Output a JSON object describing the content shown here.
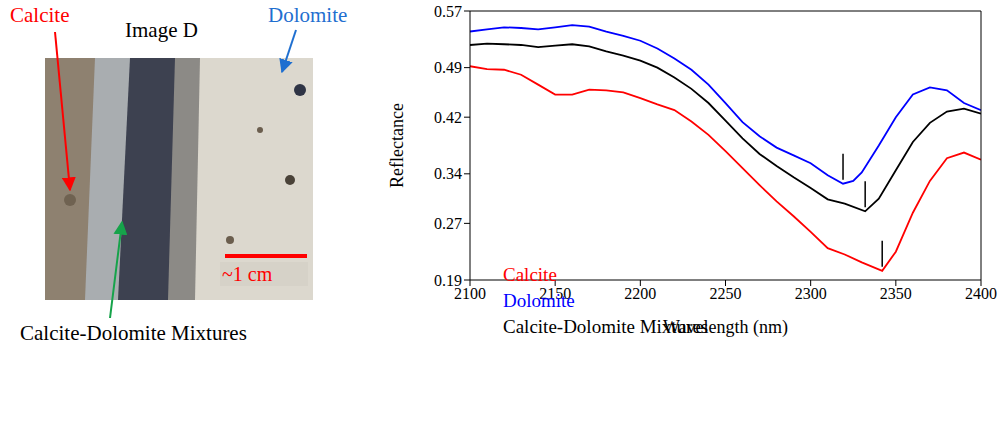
{
  "chart_data": {
    "type": "line",
    "x_label": "Wavelength (nm)",
    "y_label": "Reflectance",
    "xlim": [
      2100,
      2400
    ],
    "xticks": [
      2100,
      2150,
      2200,
      2250,
      2300,
      2350,
      2400
    ],
    "ylim": [
      0.19,
      0.57
    ],
    "yticks": [
      0.19,
      0.27,
      0.34,
      0.42,
      0.49,
      0.57
    ],
    "grid": false,
    "legend": "lower left",
    "series": [
      {
        "name": "Calcite",
        "color": "#ff0000",
        "band_center": 2342,
        "x": [
          2100,
          2110,
          2120,
          2130,
          2140,
          2150,
          2160,
          2170,
          2180,
          2190,
          2200,
          2210,
          2220,
          2230,
          2240,
          2250,
          2260,
          2270,
          2280,
          2290,
          2300,
          2310,
          2320,
          2330,
          2342,
          2350,
          2360,
          2370,
          2380,
          2390,
          2400
        ],
        "values": [
          0.492,
          0.488,
          0.487,
          0.48,
          0.466,
          0.452,
          0.452,
          0.459,
          0.458,
          0.455,
          0.447,
          0.438,
          0.43,
          0.414,
          0.395,
          0.372,
          0.348,
          0.324,
          0.301,
          0.28,
          0.258,
          0.235,
          0.226,
          0.215,
          0.203,
          0.23,
          0.285,
          0.33,
          0.362,
          0.37,
          0.36
        ]
      },
      {
        "name": "Dolomite",
        "color": "#0000ff",
        "band_center": 2319,
        "x": [
          2100,
          2110,
          2120,
          2130,
          2140,
          2150,
          2160,
          2170,
          2180,
          2190,
          2200,
          2210,
          2220,
          2230,
          2240,
          2250,
          2260,
          2270,
          2280,
          2290,
          2300,
          2310,
          2319,
          2325,
          2330,
          2340,
          2350,
          2360,
          2370,
          2380,
          2390,
          2400
        ],
        "values": [
          0.541,
          0.544,
          0.547,
          0.546,
          0.544,
          0.547,
          0.55,
          0.548,
          0.541,
          0.535,
          0.528,
          0.517,
          0.503,
          0.487,
          0.466,
          0.44,
          0.413,
          0.393,
          0.377,
          0.366,
          0.355,
          0.338,
          0.326,
          0.33,
          0.342,
          0.38,
          0.42,
          0.452,
          0.462,
          0.458,
          0.44,
          0.43
        ]
      },
      {
        "name": "Calcite-Dolomite Mixtures",
        "color": "#000000",
        "band_center": 2332,
        "x": [
          2100,
          2110,
          2120,
          2130,
          2140,
          2150,
          2160,
          2170,
          2180,
          2190,
          2200,
          2210,
          2220,
          2230,
          2240,
          2250,
          2260,
          2270,
          2280,
          2290,
          2300,
          2310,
          2320,
          2332,
          2340,
          2350,
          2360,
          2370,
          2380,
          2390,
          2400
        ],
        "values": [
          0.522,
          0.524,
          0.523,
          0.522,
          0.519,
          0.521,
          0.523,
          0.52,
          0.513,
          0.507,
          0.5,
          0.49,
          0.476,
          0.46,
          0.44,
          0.415,
          0.39,
          0.368,
          0.351,
          0.335,
          0.32,
          0.304,
          0.298,
          0.287,
          0.305,
          0.345,
          0.385,
          0.412,
          0.428,
          0.432,
          0.425
        ]
      }
    ]
  },
  "image_panel": {
    "title": "Image D",
    "scale_bar": "~1 cm",
    "labels": [
      {
        "text": "Calcite",
        "color": "#ff0000"
      },
      {
        "text": "Dolomite",
        "color": "#1f6fd0"
      },
      {
        "text": "Calcite-Dolomite Mixtures",
        "color": "#000000",
        "arrow_color": "#16a34a"
      }
    ]
  }
}
